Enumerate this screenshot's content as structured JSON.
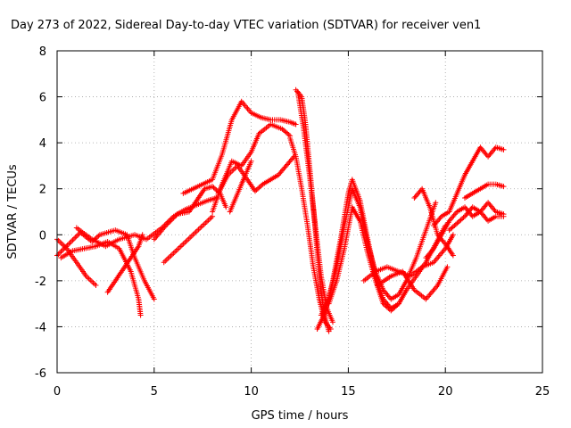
{
  "chart_data": {
    "type": "scatter",
    "title": "Day 273 of 2022, Sidereal Day-to-day VTEC variation (SDTVAR) for receiver ven1",
    "xlabel": "GPS time / hours",
    "ylabel": "SDTVAR / TECUs",
    "xlim": [
      0,
      25
    ],
    "ylim": [
      -6,
      8
    ],
    "x_ticks": [
      "0",
      "5",
      "10",
      "15",
      "20",
      "25"
    ],
    "y_ticks": [
      "-6",
      "-4",
      "-2",
      "0",
      "2",
      "4",
      "6",
      "8"
    ],
    "grid": true,
    "marker": "plus",
    "color": "#ff0000",
    "tracks": [
      {
        "x": [
          0.0,
          0.5,
          1.0,
          1.5,
          2.0
        ],
        "y": [
          -0.2,
          -0.6,
          -1.2,
          -1.8,
          -2.2
        ]
      },
      {
        "x": [
          0.0,
          0.6,
          1.2,
          1.8,
          2.2,
          3.0,
          3.6,
          4.0,
          4.5,
          5.0
        ],
        "y": [
          -0.9,
          -0.4,
          0.1,
          -0.3,
          0.0,
          0.2,
          0.0,
          -1.0,
          -2.0,
          -2.8
        ]
      },
      {
        "x": [
          0.2,
          0.8,
          1.4,
          2.0,
          2.6,
          3.2,
          3.8,
          4.2,
          4.3
        ],
        "y": [
          -1.0,
          -0.7,
          -0.6,
          -0.5,
          -0.3,
          -0.6,
          -1.6,
          -2.8,
          -3.5
        ]
      },
      {
        "x": [
          2.6,
          3.0,
          3.4,
          3.8,
          4.2,
          4.4
        ],
        "y": [
          -2.5,
          -2.0,
          -1.5,
          -1.0,
          -0.5,
          0.0
        ]
      },
      {
        "x": [
          1.0,
          1.8,
          2.5,
          3.2,
          4.0,
          4.6,
          5.4,
          6.0,
          6.6,
          7.2,
          7.8,
          8.2
        ],
        "y": [
          0.3,
          -0.2,
          -0.5,
          -0.2,
          0.0,
          -0.2,
          0.3,
          0.8,
          1.1,
          1.3,
          1.5,
          1.6
        ]
      },
      {
        "x": [
          5.0,
          5.6,
          6.2,
          6.8,
          7.2,
          7.6,
          8.0,
          8.4,
          8.7
        ],
        "y": [
          -0.2,
          0.4,
          0.9,
          1.0,
          1.5,
          2.0,
          2.1,
          1.8,
          1.2
        ]
      },
      {
        "x": [
          5.5,
          6.0,
          6.5,
          7.0,
          7.5,
          8.0
        ],
        "y": [
          -1.2,
          -0.8,
          -0.4,
          0.0,
          0.4,
          0.8
        ]
      },
      {
        "x": [
          6.5,
          7.0,
          7.5,
          8.0,
          8.5,
          9.0,
          9.5,
          10.0,
          10.5,
          11.0,
          11.5,
          12.0,
          12.3
        ],
        "y": [
          1.8,
          2.0,
          2.2,
          2.4,
          3.5,
          5.0,
          5.8,
          5.3,
          5.1,
          5.0,
          5.0,
          4.9,
          4.8
        ]
      },
      {
        "x": [
          8.0,
          8.5,
          9.0,
          9.5,
          10.0,
          10.4,
          11.0,
          11.6,
          12.0
        ],
        "y": [
          1.0,
          2.2,
          3.2,
          3.0,
          3.6,
          4.4,
          4.8,
          4.6,
          4.3
        ]
      },
      {
        "x": [
          8.3,
          8.8,
          9.3,
          9.8,
          10.2,
          10.6,
          11.0,
          11.4,
          11.8,
          12.2
        ],
        "y": [
          1.8,
          2.6,
          3.0,
          2.4,
          1.9,
          2.2,
          2.4,
          2.6,
          3.0,
          3.4
        ]
      },
      {
        "x": [
          8.9,
          9.2,
          9.5,
          9.7,
          10.0
        ],
        "y": [
          1.0,
          1.6,
          2.2,
          2.6,
          3.2
        ]
      },
      {
        "x": [
          12.3,
          12.6,
          12.8,
          13.0,
          13.2,
          13.4,
          13.6,
          13.8,
          14.0
        ],
        "y": [
          6.3,
          6.0,
          4.8,
          3.0,
          1.2,
          -0.8,
          -2.5,
          -3.6,
          -4.2
        ]
      },
      {
        "x": [
          12.0,
          12.3,
          12.6,
          12.9,
          13.2,
          13.5,
          13.8,
          14.1
        ],
        "y": [
          4.2,
          3.4,
          2.0,
          0.4,
          -1.4,
          -2.8,
          -3.8,
          -4.1
        ]
      },
      {
        "x": [
          12.4,
          12.7,
          13.0,
          13.3,
          13.6,
          13.9,
          14.2
        ],
        "y": [
          6.2,
          4.6,
          2.6,
          0.4,
          -1.8,
          -3.2,
          -3.8
        ]
      },
      {
        "x": [
          13.4,
          13.8,
          14.2,
          14.6,
          15.0,
          15.2,
          15.6,
          16.0,
          16.4,
          16.8,
          17.2,
          17.6
        ],
        "y": [
          -4.1,
          -3.4,
          -2.0,
          -0.2,
          1.8,
          2.4,
          1.5,
          -0.2,
          -1.8,
          -2.8,
          -3.2,
          -3.0
        ]
      },
      {
        "x": [
          13.6,
          14.0,
          14.4,
          14.8,
          15.2,
          15.6,
          16.0,
          16.4,
          16.8,
          17.2,
          17.6,
          18.0,
          18.5,
          19.0,
          19.5
        ],
        "y": [
          -3.5,
          -2.8,
          -1.4,
          0.4,
          2.0,
          1.2,
          -0.4,
          -1.6,
          -2.4,
          -2.8,
          -2.6,
          -2.0,
          -1.0,
          0.2,
          1.4
        ]
      },
      {
        "x": [
          14.0,
          14.4,
          14.8,
          15.2,
          15.6,
          16.0,
          16.4,
          16.8,
          17.2,
          17.6,
          18.0,
          18.5,
          19.0,
          19.5,
          20.0
        ],
        "y": [
          -3.0,
          -2.0,
          -0.6,
          1.2,
          0.6,
          -0.8,
          -2.0,
          -3.0,
          -3.3,
          -3.0,
          -2.4,
          -1.8,
          -1.2,
          -0.4,
          0.4
        ]
      },
      {
        "x": [
          15.8,
          16.4,
          17.0,
          17.6,
          18.2,
          18.8,
          19.4,
          20.0,
          20.4
        ],
        "y": [
          -2.0,
          -1.6,
          -1.4,
          -1.6,
          -1.8,
          -1.4,
          -1.2,
          -0.6,
          0.0
        ]
      },
      {
        "x": [
          16.5,
          17.2,
          17.8,
          18.4,
          19.0,
          19.6,
          20.1
        ],
        "y": [
          -2.2,
          -1.8,
          -1.6,
          -2.4,
          -2.8,
          -2.2,
          -1.4
        ]
      },
      {
        "x": [
          19.0,
          19.4,
          19.8,
          20.2,
          20.6,
          21.0,
          21.4,
          21.8,
          22.2,
          22.6,
          23.0
        ],
        "y": [
          -1.0,
          -0.6,
          0.0,
          0.6,
          1.0,
          1.2,
          0.8,
          1.0,
          0.6,
          0.8,
          0.8
        ]
      },
      {
        "x": [
          19.4,
          19.8,
          20.2,
          20.6,
          21.0,
          21.4,
          21.8,
          22.2,
          22.6,
          23.0
        ],
        "y": [
          0.4,
          0.8,
          1.0,
          1.8,
          2.6,
          3.2,
          3.8,
          3.4,
          3.8,
          3.7
        ]
      },
      {
        "x": [
          20.2,
          20.6,
          21.0,
          21.4,
          21.8,
          22.2,
          22.6,
          23.0
        ],
        "y": [
          0.2,
          0.5,
          0.8,
          1.2,
          1.0,
          1.4,
          1.0,
          0.9
        ]
      },
      {
        "x": [
          21.0,
          21.4,
          21.8,
          22.2,
          22.6,
          23.0
        ],
        "y": [
          1.6,
          1.8,
          2.0,
          2.2,
          2.2,
          2.1
        ]
      },
      {
        "x": [
          18.4,
          18.8,
          19.2,
          19.6,
          20.0,
          20.4
        ],
        "y": [
          1.6,
          2.0,
          1.2,
          0.0,
          -0.4,
          -0.9
        ]
      }
    ]
  }
}
